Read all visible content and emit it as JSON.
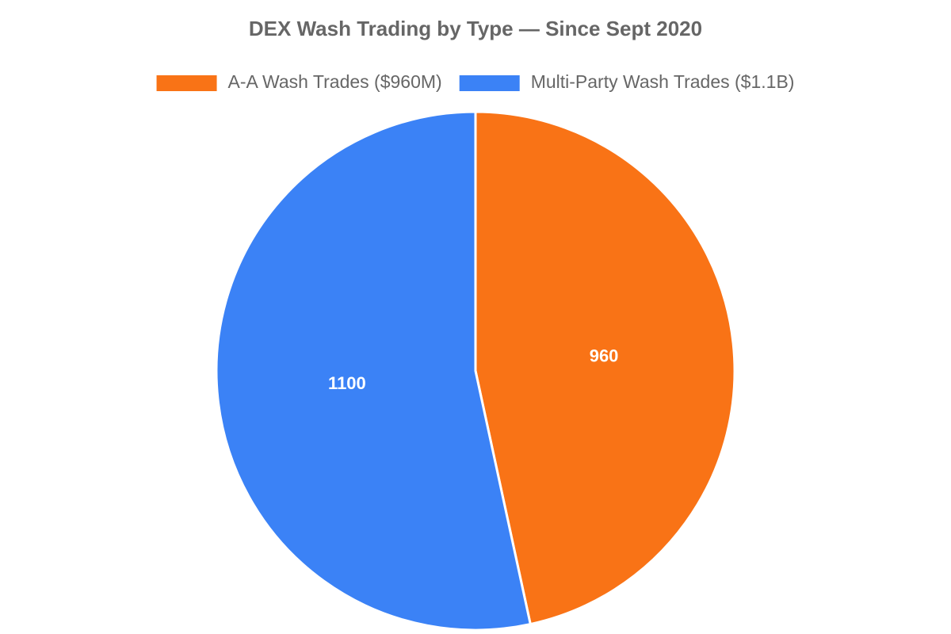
{
  "chart_data": {
    "type": "pie",
    "title": "DEX Wash Trading by Type — Since Sept 2020",
    "categories": [
      "A-A Wash Trades ($960M)",
      "Multi-Party Wash Trades ($1.1B)"
    ],
    "values": [
      960,
      1100
    ],
    "colors": [
      "#f97316",
      "#3b82f6"
    ],
    "legend": "top"
  }
}
